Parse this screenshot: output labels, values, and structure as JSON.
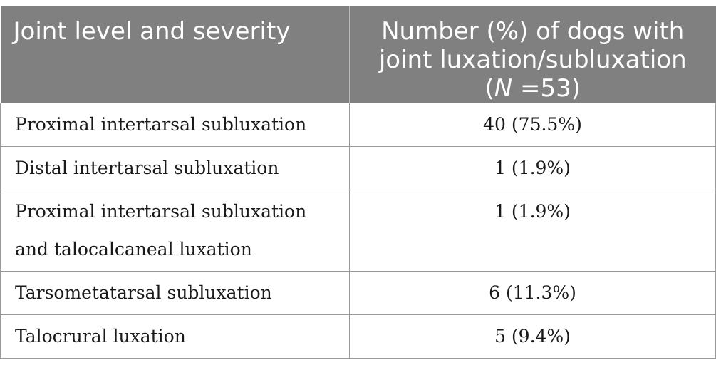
{
  "table": {
    "header": {
      "col1": "Joint level and severity",
      "col2_line1": "Number (%) of dogs with",
      "col2_line2": "joint luxation/subluxation",
      "col2_n_open": "(",
      "col2_n_symbol": "N",
      "col2_n_rest": " =53)"
    },
    "rows": [
      {
        "joint": "Proximal intertarsal subluxation",
        "value": "40 (75.5%)"
      },
      {
        "joint": "Distal intertarsal subluxation",
        "value": "1 (1.9%)"
      },
      {
        "joint": "Proximal intertarsal subluxation and talocalcaneal luxation",
        "value": "1 (1.9%)"
      },
      {
        "joint": "Tarsometatarsal subluxation",
        "value": "6 (11.3%)"
      },
      {
        "joint": "Talocrural luxation",
        "value": "5 (9.4%)"
      }
    ]
  }
}
